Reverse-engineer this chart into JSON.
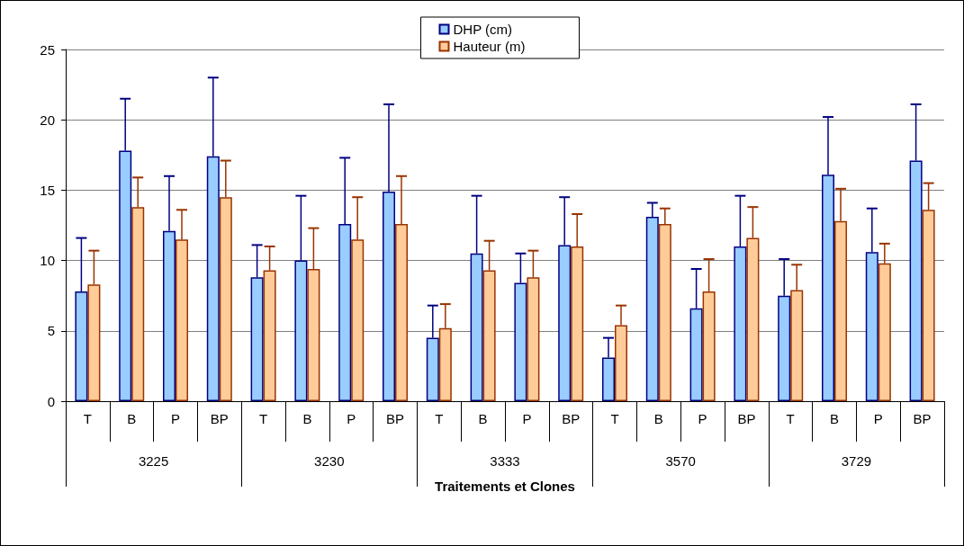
{
  "chart_data": {
    "type": "bar",
    "xlabel": "Traitements et Clones",
    "categories": [
      "T",
      "B",
      "P",
      "BP",
      "T",
      "B",
      "P",
      "BP",
      "T",
      "B",
      "P",
      "BP",
      "T",
      "B",
      "P",
      "BP",
      "T",
      "B",
      "P",
      "BP"
    ],
    "annotations": [
      "3225",
      "3230",
      "3333",
      "3570",
      "3729"
    ],
    "series": [
      {
        "name": "DHP (cm)",
        "color": "#99ccff",
        "values": [
          7.8,
          17.8,
          12.1,
          17.4,
          8.8,
          10.0,
          12.6,
          14.9,
          4.5,
          10.5,
          8.4,
          11.1,
          3.1,
          13.1,
          6.6,
          11.0,
          7.5,
          16.1,
          10.6,
          17.1
        ],
        "errors": [
          [
            7.8,
            11.6
          ],
          [
            17.8,
            21.5
          ],
          [
            12.1,
            16.0
          ],
          [
            17.4,
            23.0
          ],
          [
            8.8,
            11.1
          ],
          [
            10.0,
            14.6
          ],
          [
            12.6,
            17.3
          ],
          [
            14.9,
            21.1
          ],
          [
            4.5,
            6.8
          ],
          [
            10.5,
            14.6
          ],
          [
            8.4,
            10.5
          ],
          [
            11.1,
            14.5
          ],
          [
            3.1,
            4.5
          ],
          [
            13.1,
            14.1
          ],
          [
            6.6,
            9.4
          ],
          [
            11.0,
            14.6
          ],
          [
            7.5,
            10.1
          ],
          [
            16.1,
            20.2
          ],
          [
            10.6,
            13.7
          ],
          [
            17.1,
            21.1
          ]
        ]
      },
      {
        "name": "Hauteur (m)",
        "color": "#ffcc99",
        "values": [
          8.3,
          13.8,
          11.5,
          14.5,
          9.3,
          9.4,
          11.5,
          12.6,
          5.2,
          9.3,
          8.8,
          11.0,
          5.4,
          12.6,
          7.8,
          11.6,
          7.9,
          12.8,
          9.8,
          13.6
        ],
        "errors": [
          [
            8.3,
            10.7
          ],
          [
            13.8,
            15.9
          ],
          [
            11.5,
            13.6
          ],
          [
            14.5,
            17.1
          ],
          [
            9.3,
            11.0
          ],
          [
            9.4,
            12.3
          ],
          [
            11.5,
            14.5
          ],
          [
            12.6,
            16.0
          ],
          [
            5.2,
            6.9
          ],
          [
            9.3,
            11.4
          ],
          [
            8.8,
            10.7
          ],
          [
            11.0,
            13.3
          ],
          [
            5.4,
            6.8
          ],
          [
            12.6,
            13.7
          ],
          [
            7.8,
            10.1
          ],
          [
            11.6,
            13.8
          ],
          [
            7.9,
            9.7
          ],
          [
            12.8,
            15.1
          ],
          [
            9.8,
            11.2
          ],
          [
            13.6,
            15.5
          ]
        ]
      }
    ],
    "ylim": [
      0,
      25
    ],
    "yticks": [
      0,
      5,
      10,
      15,
      20,
      25
    ],
    "grid": "y",
    "legend": "top"
  }
}
